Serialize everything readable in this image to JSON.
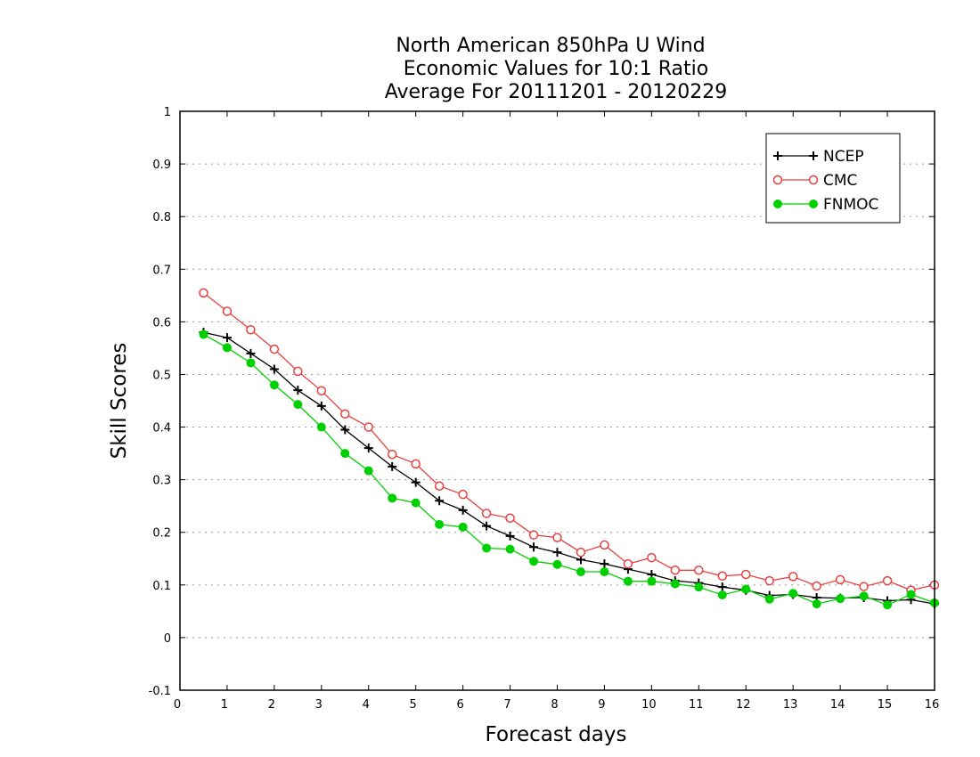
{
  "chart_data": {
    "type": "line",
    "title_lines": [
      "North American 850hPa U Wind",
      "Economic Values for 10:1 Ratio",
      "Average For 20111201 - 20120229"
    ],
    "xlabel": "Forecast days",
    "ylabel": "Skill Scores",
    "xlim": [
      0,
      16
    ],
    "ylim": [
      -0.1,
      1
    ],
    "x_ticks": [
      "0",
      "1",
      "2",
      "3",
      "4",
      "5",
      "6",
      "7",
      "8",
      "9",
      "10",
      "11",
      "12",
      "13",
      "14",
      "15",
      "16"
    ],
    "y_ticks": [
      "-0.1",
      "0",
      "0.1",
      "0.2",
      "0.3",
      "0.4",
      "0.5",
      "0.6",
      "0.7",
      "0.8",
      "0.9",
      "1"
    ],
    "grid": "horizontal dotted",
    "legend_position": "top-right",
    "x": [
      0.5,
      1,
      1.5,
      2,
      2.5,
      3,
      3.5,
      4,
      4.5,
      5,
      5.5,
      6,
      6.5,
      7,
      7.5,
      8,
      8.5,
      9,
      9.5,
      10,
      10.5,
      11,
      11.5,
      12,
      12.5,
      13,
      13.5,
      14,
      14.5,
      15,
      15.5,
      16
    ],
    "series": [
      {
        "name": "NCEP",
        "color": "#000000",
        "marker": "plus",
        "values": [
          0.58,
          0.57,
          0.54,
          0.51,
          0.47,
          0.44,
          0.395,
          0.36,
          0.325,
          0.295,
          0.26,
          0.242,
          0.212,
          0.193,
          0.172,
          0.162,
          0.148,
          0.14,
          0.13,
          0.12,
          0.108,
          0.104,
          0.096,
          0.09,
          0.08,
          0.082,
          0.076,
          0.075,
          0.076,
          0.07,
          0.072,
          0.064
        ]
      },
      {
        "name": "CMC",
        "color": "#e84040",
        "marker": "open-circle",
        "values": [
          0.655,
          0.62,
          0.585,
          0.548,
          0.506,
          0.469,
          0.425,
          0.4,
          0.348,
          0.33,
          0.288,
          0.272,
          0.236,
          0.227,
          0.195,
          0.19,
          0.162,
          0.176,
          0.14,
          0.152,
          0.128,
          0.128,
          0.117,
          0.12,
          0.108,
          0.116,
          0.098,
          0.11,
          0.097,
          0.108,
          0.09,
          0.1
        ]
      },
      {
        "name": "FNMOC",
        "color": "#00d000",
        "marker": "filled-circle",
        "values": [
          0.576,
          0.551,
          0.522,
          0.48,
          0.443,
          0.4,
          0.35,
          0.317,
          0.265,
          0.256,
          0.215,
          0.21,
          0.17,
          0.168,
          0.145,
          0.139,
          0.125,
          0.125,
          0.107,
          0.107,
          0.102,
          0.096,
          0.081,
          0.092,
          0.073,
          0.084,
          0.064,
          0.074,
          0.079,
          0.062,
          0.082,
          0.066
        ]
      }
    ]
  }
}
